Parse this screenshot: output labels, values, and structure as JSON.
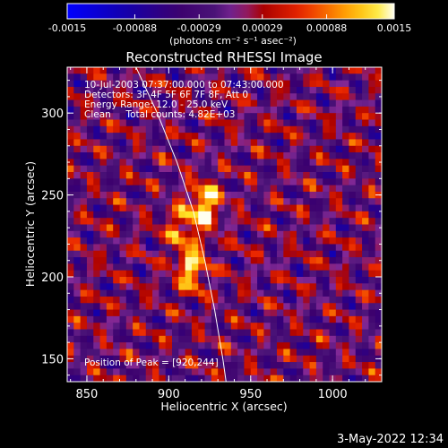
{
  "colorbar": {
    "ticks": [
      "-0.0015",
      "-0.00088",
      "-0.00029",
      "0.00029",
      "0.00088",
      "0.0015"
    ],
    "units_label": "(photons cm⁻² s⁻¹ asec⁻²)",
    "range": [
      -0.0015,
      0.0015
    ]
  },
  "chart_data": {
    "type": "heatmap",
    "title": "Reconstructed RHESSI Image",
    "xlabel": "Heliocentric X (arcsec)",
    "ylabel": "Heliocentric Y (arcsec)",
    "xlim": [
      838,
      1030
    ],
    "ylim": [
      136,
      328
    ],
    "x_ticks": [
      "850",
      "900",
      "950",
      "1000"
    ],
    "y_ticks": [
      "150",
      "200",
      "250",
      "300"
    ],
    "x_tick_values": [
      850,
      900,
      950,
      1000
    ],
    "y_tick_values": [
      150,
      200,
      250,
      300
    ],
    "grid": false,
    "limb_curve": [
      [
        880,
        328
      ],
      [
        893,
        300
      ],
      [
        905,
        270
      ],
      [
        915,
        240
      ],
      [
        922,
        210
      ],
      [
        928,
        180
      ],
      [
        933,
        150
      ],
      [
        935,
        136
      ]
    ],
    "sources": [
      {
        "x": 922,
        "y": 244,
        "peak": 0.0015
      },
      {
        "x": 914,
        "y": 205,
        "peak": 0.0013
      },
      {
        "x": 908,
        "y": 230,
        "peak": 0.0009
      }
    ],
    "peak_position": [
      920,
      244
    ],
    "info_lines": [
      "10-Jul-2003 07:37:00.000 to 07:43:00.000",
      "Detectors: 3F 4F 5F 6F 7F 8F, Att 0",
      "Energy Range: 12.0 - 25.0 keV",
      "Clean     Total counts: 4.82E+03"
    ],
    "peak_label": "Position of Peak = [920,244]"
  },
  "footer": {
    "timestamp": "3-May-2022 12:34"
  }
}
